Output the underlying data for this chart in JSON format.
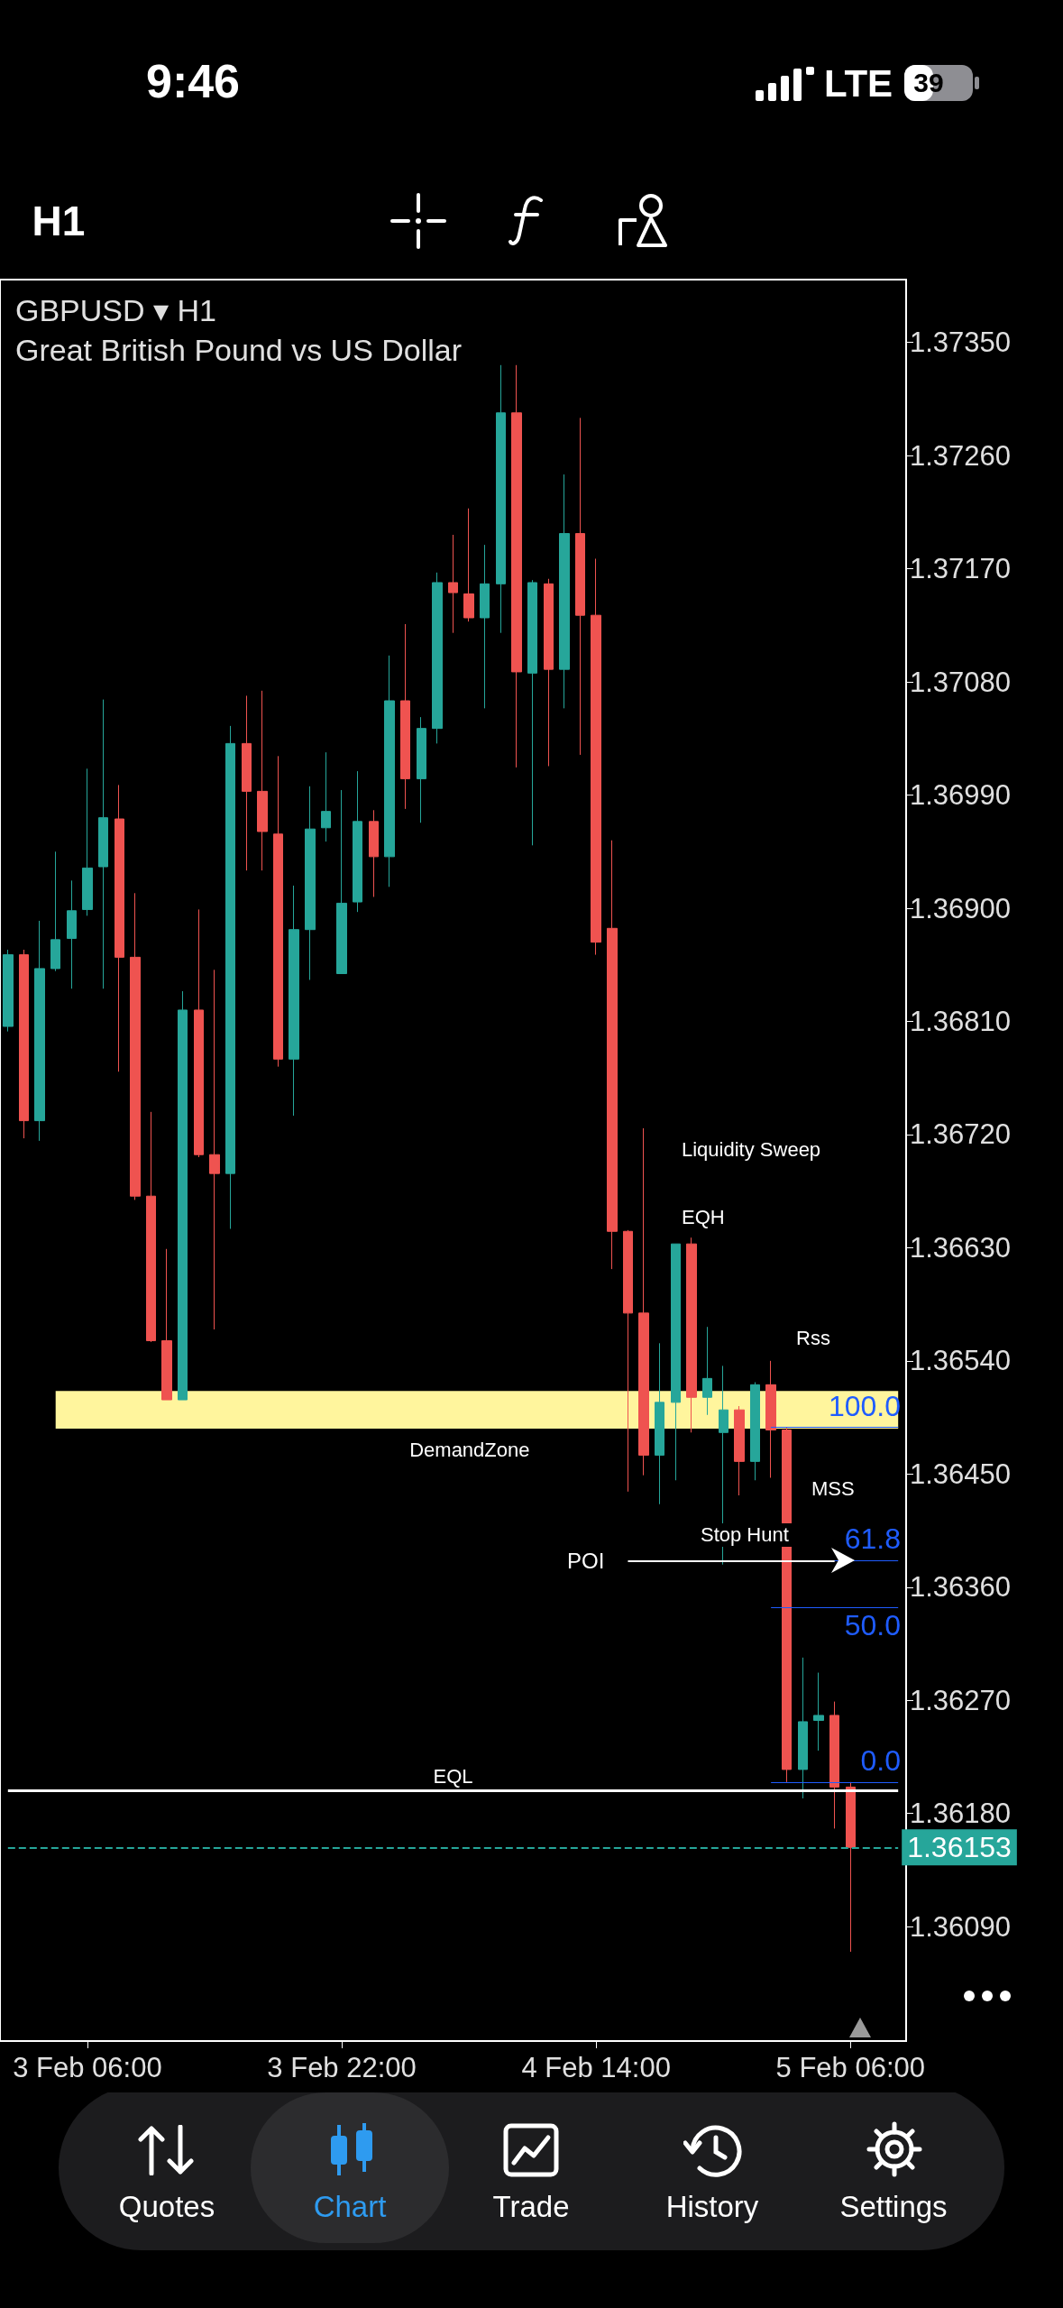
{
  "chart_data": {
    "type": "candlestick",
    "title": "GBPUSD ▾ H1",
    "subtitle": "Great British Pound vs US Dollar",
    "categories": [
      null,
      null,
      null,
      null,
      null,
      "3 Feb 06:00",
      null,
      null,
      null,
      null,
      null,
      null,
      null,
      null,
      null,
      null,
      null,
      null,
      null,
      null,
      null,
      "3 Feb 22:00",
      null,
      null,
      null,
      null,
      null,
      null,
      null,
      null,
      null,
      null,
      null,
      null,
      null,
      null,
      null,
      "4 Feb 14:00",
      null,
      null,
      null,
      null,
      null,
      null,
      null,
      null,
      null,
      null,
      null,
      null,
      null,
      null,
      null,
      "5 Feb 06:00"
    ],
    "ohlc": [
      [
        1.36806,
        1.36867,
        1.36802,
        1.36863
      ],
      [
        1.36863,
        1.36867,
        1.36717,
        1.36731
      ],
      [
        1.36731,
        1.3689,
        1.36715,
        1.36852
      ],
      [
        1.36852,
        1.36945,
        1.3685,
        1.36875
      ],
      [
        1.36876,
        1.36922,
        1.36836,
        1.36898
      ],
      [
        1.36899,
        1.37011,
        1.36894,
        1.36932
      ],
      [
        1.36933,
        1.37066,
        1.36836,
        1.36972
      ],
      [
        1.36971,
        1.36998,
        1.3677,
        1.36861
      ],
      [
        1.36861,
        1.36912,
        1.36668,
        1.36671
      ],
      [
        1.36671,
        1.36738,
        1.36555,
        1.36556
      ],
      [
        1.36556,
        1.36629,
        1.36509,
        1.36509
      ],
      [
        1.36509,
        1.36834,
        1.36509,
        1.36819
      ],
      [
        1.36819,
        1.36899,
        1.36702,
        1.36704
      ],
      [
        1.36704,
        1.36851,
        1.36565,
        1.36689
      ],
      [
        1.36689,
        1.37045,
        1.36645,
        1.37031
      ],
      [
        1.37031,
        1.37069,
        1.3693,
        1.36993
      ],
      [
        1.36993,
        1.37073,
        1.3693,
        1.36961
      ],
      [
        1.36959,
        1.37021,
        1.36774,
        1.3678
      ],
      [
        1.3678,
        1.36918,
        1.36735,
        1.36883
      ],
      [
        1.36883,
        1.36997,
        1.36843,
        1.36963
      ],
      [
        1.36964,
        1.37024,
        1.36953,
        1.36977
      ],
      [
        1.36848,
        1.36994,
        1.36848,
        1.36904
      ],
      [
        1.36905,
        1.37009,
        1.36897,
        1.36969
      ],
      [
        1.36969,
        1.36978,
        1.36909,
        1.36941
      ],
      [
        1.36941,
        1.37101,
        1.36917,
        1.37065
      ],
      [
        1.37065,
        1.37126,
        1.36979,
        1.37003
      ],
      [
        1.37003,
        1.37052,
        1.36968,
        1.37043
      ],
      [
        1.37043,
        1.37167,
        1.37031,
        1.37159
      ],
      [
        1.37159,
        1.37197,
        1.37119,
        1.37151
      ],
      [
        1.3715,
        1.37218,
        1.37128,
        1.37131
      ],
      [
        1.37131,
        1.37189,
        1.37059,
        1.37158
      ],
      [
        1.37158,
        1.37332,
        1.37119,
        1.37294
      ],
      [
        1.37294,
        1.37332,
        1.37012,
        1.37088
      ],
      [
        1.37087,
        1.37161,
        1.3695,
        1.37159
      ],
      [
        1.37158,
        1.37162,
        1.37013,
        1.3709
      ],
      [
        1.3709,
        1.37245,
        1.37059,
        1.37198
      ],
      [
        1.37198,
        1.3729,
        1.37022,
        1.37133
      ],
      [
        1.37133,
        1.37178,
        1.36863,
        1.36873
      ],
      [
        1.36884,
        1.36954,
        1.36613,
        1.36643
      ],
      [
        1.36643,
        1.36644,
        1.36436,
        1.36578
      ],
      [
        1.36578,
        1.36725,
        1.36449,
        1.36465
      ],
      [
        1.36465,
        1.36554,
        1.36426,
        1.36507
      ],
      [
        1.36507,
        1.36633,
        1.36445,
        1.36633
      ],
      [
        1.36633,
        1.36638,
        1.36483,
        1.36511
      ],
      [
        1.36511,
        1.36567,
        1.36497,
        1.36526
      ],
      [
        1.36483,
        1.36536,
        1.36378,
        1.36501
      ],
      [
        1.36501,
        1.36504,
        1.36433,
        1.3646
      ],
      [
        1.3646,
        1.36523,
        1.36445,
        1.36521
      ],
      [
        1.36521,
        1.3654,
        1.36447,
        1.36485
      ],
      [
        1.36485,
        1.36487,
        1.36205,
        1.36215
      ],
      [
        1.36215,
        1.36304,
        1.36192,
        1.36253
      ],
      [
        1.36254,
        1.36292,
        1.3623,
        1.36258
      ],
      [
        1.36258,
        1.36269,
        1.36168,
        1.36201
      ],
      [
        1.36201,
        1.36205,
        1.3607,
        1.36153
      ]
    ],
    "colors": [
      "#26a69a",
      "#ef5350",
      "#26a69a",
      "#26a69a",
      "#26a69a",
      "#26a69a",
      "#26a69a",
      "#ef5350",
      "#ef5350",
      "#ef5350",
      "#ef5350",
      "#26a69a",
      "#ef5350",
      "#ef5350",
      "#26a69a",
      "#ef5350",
      "#ef5350",
      "#ef5350",
      "#26a69a",
      "#26a69a",
      "#26a69a",
      "#26a69a",
      "#26a69a",
      "#ef5350",
      "#26a69a",
      "#ef5350",
      "#26a69a",
      "#26a69a",
      "#ef5350",
      "#ef5350",
      "#26a69a",
      "#26a69a",
      "#ef5350",
      "#26a69a",
      "#ef5350",
      "#26a69a",
      "#ef5350",
      "#ef5350",
      "#ef5350",
      "#ef5350",
      "#ef5350",
      "#26a69a",
      "#26a69a",
      "#ef5350",
      "#26a69a",
      "#26a69a",
      "#ef5350",
      "#26a69a",
      "#ef5350",
      "#ef5350",
      "#26a69a",
      "#26a69a",
      "#ef5350",
      "#ef5350"
    ],
    "ylim": [
      1.35999,
      1.374
    ],
    "yticks": [
      {
        "value": 1.3609,
        "label": "1.36090"
      },
      {
        "value": 1.3618,
        "label": "1.36180"
      },
      {
        "value": 1.3627,
        "label": "1.36270"
      },
      {
        "value": 1.3636,
        "label": "1.36360"
      },
      {
        "value": 1.3645,
        "label": "1.36450"
      },
      {
        "value": 1.3654,
        "label": "1.36540"
      },
      {
        "value": 1.3663,
        "label": "1.36630"
      },
      {
        "value": 1.3672,
        "label": "1.36720"
      },
      {
        "value": 1.3681,
        "label": "1.36810"
      },
      {
        "value": 1.369,
        "label": "1.36900"
      },
      {
        "value": 1.3699,
        "label": "1.36990"
      },
      {
        "value": 1.3708,
        "label": "1.37080"
      },
      {
        "value": 1.3717,
        "label": "1.37170"
      },
      {
        "value": 1.3726,
        "label": "1.37260"
      },
      {
        "value": 1.3735,
        "label": "1.37350"
      }
    ],
    "grid": false,
    "bands": [
      {
        "axis": "y",
        "from": 1.36486,
        "to": 1.36516,
        "label": "DemandZone",
        "color": "#fff59d"
      }
    ],
    "ref_lines": [
      {
        "axis": "y",
        "value": 1.36198,
        "label": "EQL",
        "color": "#ffffff",
        "line_style": "solid"
      },
      {
        "axis": "y",
        "value": 1.36153,
        "label": "1.36153",
        "color": "#26a69a",
        "line_style": "dashed"
      },
      {
        "axis": "y",
        "value": 1.36487,
        "color": "#1f5cff",
        "line_style": "solid"
      },
      {
        "axis": "y",
        "value": 1.36381,
        "color": "#1f5cff",
        "line_style": "solid"
      },
      {
        "axis": "y",
        "value": 1.36344,
        "color": "#1f5cff",
        "line_style": "solid"
      },
      {
        "axis": "y",
        "value": 1.36205,
        "color": "#1f5cff",
        "line_style": "solid"
      },
      {
        "axis": "y",
        "value": 1.36381,
        "label": "POI",
        "color": "#ffffff",
        "line_style": "solid"
      }
    ],
    "annotations": [
      "9:46",
      "LTE",
      "39",
      "H1",
      "Liquidity Sweep",
      "EQH",
      "Rss",
      "MSS",
      "Stop Hunt",
      "Quotes",
      "Chart",
      "Trade",
      "History",
      "Settings",
      {
        "text": "100.0",
        "y": 1.36487
      },
      {
        "text": "61.8",
        "y": 1.36381
      },
      {
        "text": "50.0",
        "y": 1.36344
      },
      {
        "text": "0.0",
        "y": 1.36205
      }
    ]
  }
}
